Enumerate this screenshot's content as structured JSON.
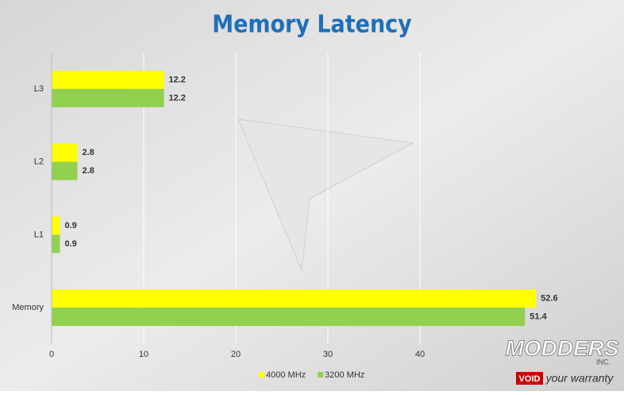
{
  "chart_data": {
    "type": "hbar",
    "title": "Memory Latency",
    "categories": [
      "L3",
      "L2",
      "L1",
      "Memory"
    ],
    "series": [
      {
        "name": "4000 MHz",
        "color": "#ffff00",
        "values": [
          12.2,
          2.8,
          0.9,
          52.6
        ]
      },
      {
        "name": "3200 MHz",
        "color": "#92d050",
        "values": [
          12.2,
          2.8,
          0.9,
          51.4
        ]
      }
    ],
    "xlim": [
      0,
      60
    ],
    "xticks": [
      0,
      10,
      20,
      30,
      40
    ],
    "grid": true,
    "legend": "bottom"
  },
  "watermark": {
    "brand": "MODDERS",
    "suffix": "INC.",
    "tagline_box": "VOID",
    "tagline": "your warranty"
  }
}
